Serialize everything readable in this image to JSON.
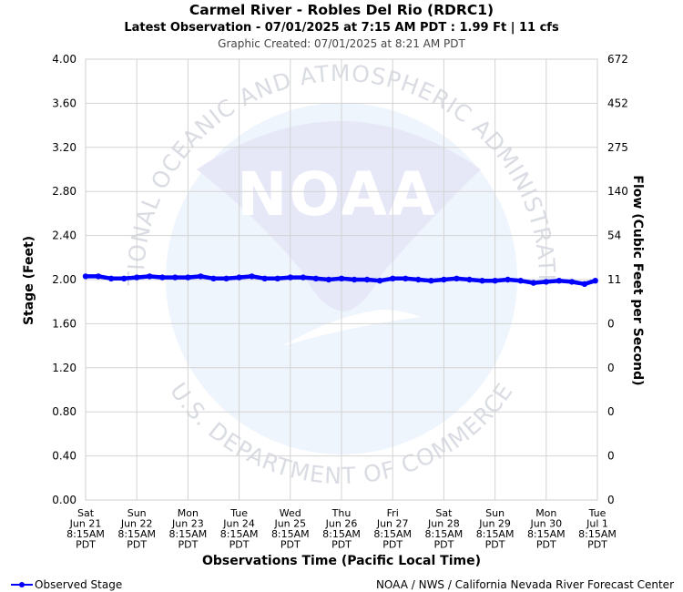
{
  "header": {
    "title": "Carmel River - Robles Del Rio (RDRC1)",
    "latest": "Latest Observation - 07/01/2025 at 7:15 AM PDT : 1.99 Ft | 11 cfs",
    "created": "Graphic Created: 07/01/2025 at 8:21 AM PDT"
  },
  "footer": {
    "legend_label": "Observed Stage",
    "credit": "NOAA / NWS / California Nevada River Forecast Center"
  },
  "watermark": {
    "logo_text": "NOAA",
    "ring_top": "NATIONAL OCEANIC AND ATMOSPHERIC ADMINISTRATION",
    "ring_bottom": "U.S. DEPARTMENT OF COMMERCE"
  },
  "colors": {
    "series": "#0000ff",
    "grid": "#d3d3d3",
    "watermark_dark": "#e6e8f8",
    "watermark_light": "#eef5fd"
  },
  "chart_data": {
    "type": "line",
    "title": "Carmel River - Robles Del Rio (RDRC1)",
    "xlabel": "Observations Time (Pacific Local Time)",
    "ylabel": "Stage (Feet)",
    "y2label": "Flow (Cubic Feet per Second)",
    "ylim": [
      0,
      4
    ],
    "grid": true,
    "legend": "bottom-left",
    "y_ticks": [
      "0.00",
      "0.40",
      "0.80",
      "1.20",
      "1.60",
      "2.00",
      "2.40",
      "2.80",
      "3.20",
      "3.60",
      "4.00"
    ],
    "y2_ticks": [
      "0",
      "0",
      "0",
      "0",
      "0",
      "11",
      "54",
      "140",
      "275",
      "452",
      "672"
    ],
    "x_ticks": [
      [
        "Sat",
        "Jun 21",
        "8:15AM",
        "PDT"
      ],
      [
        "Sun",
        "Jun 22",
        "8:15AM",
        "PDT"
      ],
      [
        "Mon",
        "Jun 23",
        "8:15AM",
        "PDT"
      ],
      [
        "Tue",
        "Jun 24",
        "8:15AM",
        "PDT"
      ],
      [
        "Wed",
        "Jun 25",
        "8:15AM",
        "PDT"
      ],
      [
        "Thu",
        "Jun 26",
        "8:15AM",
        "PDT"
      ],
      [
        "Fri",
        "Jun 27",
        "8:15AM",
        "PDT"
      ],
      [
        "Sat",
        "Jun 28",
        "8:15AM",
        "PDT"
      ],
      [
        "Sun",
        "Jun 29",
        "8:15AM",
        "PDT"
      ],
      [
        "Mon",
        "Jun 30",
        "8:15AM",
        "PDT"
      ],
      [
        "Tue",
        "Jul 1",
        "8:15AM",
        "PDT"
      ]
    ],
    "x_range": [
      "2025-06-21 08:15",
      "2025-07-01 08:15"
    ],
    "series": [
      {
        "name": "Observed Stage",
        "x": [
          "2025-06-21 08:15",
          "2025-06-21 14:15",
          "2025-06-21 20:15",
          "2025-06-22 02:15",
          "2025-06-22 08:15",
          "2025-06-22 14:15",
          "2025-06-22 20:15",
          "2025-06-23 02:15",
          "2025-06-23 08:15",
          "2025-06-23 14:15",
          "2025-06-23 20:15",
          "2025-06-24 02:15",
          "2025-06-24 08:15",
          "2025-06-24 14:15",
          "2025-06-24 20:15",
          "2025-06-25 02:15",
          "2025-06-25 08:15",
          "2025-06-25 14:15",
          "2025-06-25 20:15",
          "2025-06-26 02:15",
          "2025-06-26 08:15",
          "2025-06-26 14:15",
          "2025-06-26 20:15",
          "2025-06-27 02:15",
          "2025-06-27 08:15",
          "2025-06-27 14:15",
          "2025-06-27 20:15",
          "2025-06-28 02:15",
          "2025-06-28 08:15",
          "2025-06-28 14:15",
          "2025-06-28 20:15",
          "2025-06-29 02:15",
          "2025-06-29 08:15",
          "2025-06-29 14:15",
          "2025-06-29 20:15",
          "2025-06-30 02:15",
          "2025-06-30 08:15",
          "2025-06-30 14:15",
          "2025-06-30 20:15",
          "2025-07-01 02:15",
          "2025-07-01 07:15"
        ],
        "y": [
          2.03,
          2.03,
          2.01,
          2.01,
          2.02,
          2.03,
          2.02,
          2.02,
          2.02,
          2.03,
          2.01,
          2.01,
          2.02,
          2.03,
          2.01,
          2.01,
          2.02,
          2.02,
          2.01,
          2.0,
          2.01,
          2.0,
          2.0,
          1.99,
          2.01,
          2.01,
          2.0,
          1.99,
          2.0,
          2.01,
          2.0,
          1.99,
          1.99,
          2.0,
          1.99,
          1.97,
          1.98,
          1.99,
          1.98,
          1.96,
          1.99
        ]
      }
    ]
  }
}
